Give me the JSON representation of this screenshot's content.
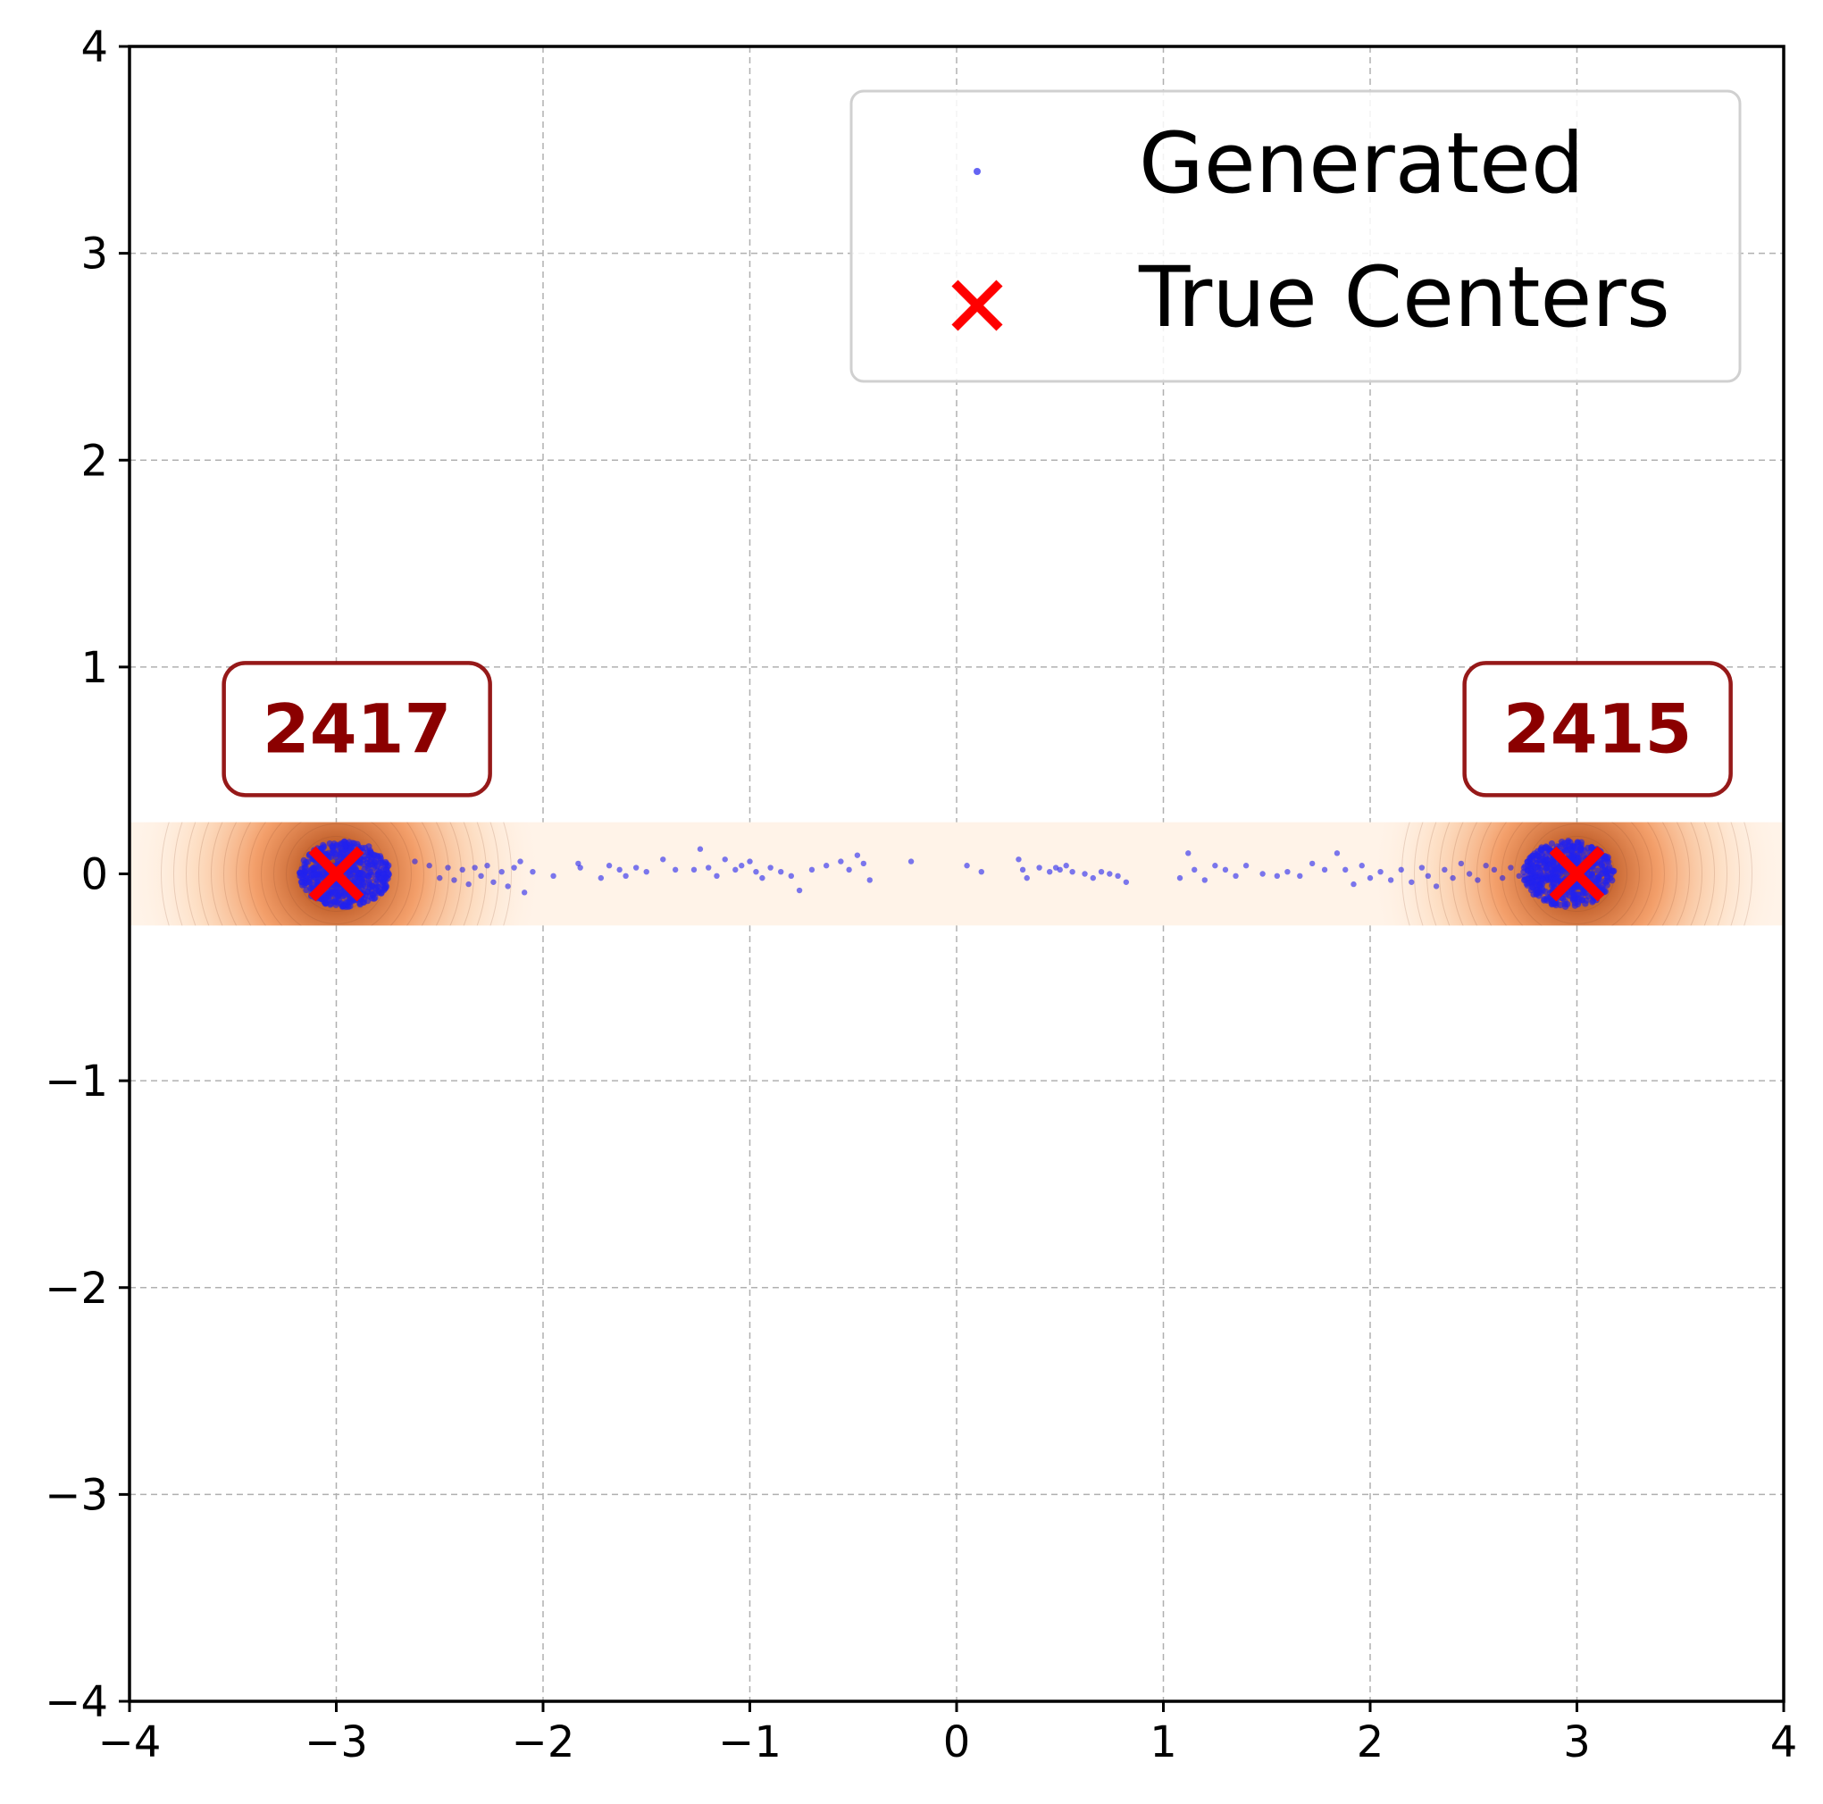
{
  "chart_data": {
    "type": "scatter",
    "title": "",
    "xlabel": "",
    "ylabel": "",
    "xlim": [
      -4,
      4
    ],
    "ylim": [
      -4,
      4
    ],
    "grid": true,
    "legend_position": "top-right",
    "x_ticks": [
      -4,
      -3,
      -2,
      -1,
      0,
      1,
      2,
      3,
      4
    ],
    "y_ticks": [
      -4,
      -3,
      -2,
      -1,
      0,
      1,
      2,
      3,
      4
    ],
    "x_tick_labels": [
      "−4",
      "−3",
      "−2",
      "−1",
      "0",
      "1",
      "2",
      "3",
      "4"
    ],
    "y_tick_labels": [
      "−4",
      "−3",
      "−2",
      "−1",
      "0",
      "1",
      "2",
      "3",
      "4"
    ],
    "density_band": {
      "x": [
        -4,
        4
      ],
      "y": [
        -0.25,
        0.25
      ],
      "peaks_x": [
        -3,
        3
      ],
      "color": "#f08a4b"
    },
    "series": [
      {
        "name": "Generated",
        "color": "#2222ee",
        "cluster_centers": [
          [
            -3,
            0
          ],
          [
            3,
            0
          ]
        ],
        "points": [
          [
            -2.62,
            0.06
          ],
          [
            -2.55,
            0.04
          ],
          [
            -2.5,
            -0.02
          ],
          [
            -2.46,
            0.03
          ],
          [
            -2.43,
            -0.03
          ],
          [
            -2.39,
            0.02
          ],
          [
            -2.36,
            -0.05
          ],
          [
            -2.33,
            0.03
          ],
          [
            -2.3,
            -0.01
          ],
          [
            -2.27,
            0.04
          ],
          [
            -2.24,
            -0.04
          ],
          [
            -2.2,
            0.01
          ],
          [
            -2.17,
            -0.06
          ],
          [
            -2.14,
            0.03
          ],
          [
            -2.11,
            0.06
          ],
          [
            -2.09,
            -0.09
          ],
          [
            -2.05,
            0.01
          ],
          [
            -1.95,
            -0.01
          ],
          [
            -1.83,
            0.05
          ],
          [
            -1.82,
            0.03
          ],
          [
            -1.72,
            -0.02
          ],
          [
            -1.68,
            0.04
          ],
          [
            -1.63,
            0.02
          ],
          [
            -1.6,
            -0.01
          ],
          [
            -1.55,
            0.03
          ],
          [
            -1.5,
            0.01
          ],
          [
            -1.42,
            0.07
          ],
          [
            -1.36,
            0.02
          ],
          [
            -1.27,
            0.02
          ],
          [
            -1.24,
            0.12
          ],
          [
            -1.2,
            0.03
          ],
          [
            -1.16,
            -0.01
          ],
          [
            -1.12,
            0.07
          ],
          [
            -1.07,
            0.02
          ],
          [
            -1.04,
            0.04
          ],
          [
            -1.0,
            0.06
          ],
          [
            -0.97,
            0.01
          ],
          [
            -0.94,
            -0.02
          ],
          [
            -0.9,
            0.03
          ],
          [
            -0.85,
            0.01
          ],
          [
            -0.8,
            -0.01
          ],
          [
            -0.76,
            -0.08
          ],
          [
            -0.7,
            0.02
          ],
          [
            -0.63,
            0.04
          ],
          [
            -0.56,
            0.06
          ],
          [
            -0.52,
            0.02
          ],
          [
            -0.48,
            0.09
          ],
          [
            -0.45,
            0.05
          ],
          [
            -0.42,
            -0.03
          ],
          [
            -0.22,
            0.06
          ],
          [
            0.05,
            0.04
          ],
          [
            0.12,
            0.01
          ],
          [
            0.3,
            0.07
          ],
          [
            0.32,
            0.02
          ],
          [
            0.34,
            -0.02
          ],
          [
            0.4,
            0.03
          ],
          [
            0.45,
            0.01
          ],
          [
            0.48,
            0.03
          ],
          [
            0.5,
            0.02
          ],
          [
            0.53,
            0.04
          ],
          [
            0.56,
            0.01
          ],
          [
            0.62,
            0.0
          ],
          [
            0.66,
            -0.02
          ],
          [
            0.7,
            0.01
          ],
          [
            0.74,
            0.0
          ],
          [
            0.78,
            -0.01
          ],
          [
            0.82,
            -0.04
          ],
          [
            1.08,
            -0.02
          ],
          [
            1.12,
            0.1
          ],
          [
            1.15,
            0.02
          ],
          [
            1.2,
            -0.03
          ],
          [
            1.25,
            0.04
          ],
          [
            1.3,
            0.02
          ],
          [
            1.35,
            -0.01
          ],
          [
            1.4,
            0.04
          ],
          [
            1.48,
            0.0
          ],
          [
            1.55,
            -0.01
          ],
          [
            1.6,
            0.01
          ],
          [
            1.66,
            -0.01
          ],
          [
            1.72,
            0.05
          ],
          [
            1.78,
            0.02
          ],
          [
            1.84,
            0.1
          ],
          [
            1.88,
            0.02
          ],
          [
            1.92,
            -0.05
          ],
          [
            1.96,
            0.04
          ],
          [
            2.0,
            -0.02
          ],
          [
            2.05,
            0.01
          ],
          [
            2.1,
            -0.03
          ],
          [
            2.15,
            0.02
          ],
          [
            2.2,
            -0.04
          ],
          [
            2.25,
            0.03
          ],
          [
            2.28,
            -0.01
          ],
          [
            2.32,
            -0.06
          ],
          [
            2.36,
            0.02
          ],
          [
            2.4,
            -0.02
          ],
          [
            2.44,
            0.05
          ],
          [
            2.48,
            0.0
          ],
          [
            2.52,
            -0.03
          ],
          [
            2.56,
            0.04
          ],
          [
            2.6,
            0.02
          ],
          [
            2.64,
            -0.02
          ],
          [
            2.68,
            0.03
          ],
          [
            2.72,
            -0.01
          ],
          [
            2.76,
            0.02
          ]
        ]
      },
      {
        "name": "True Centers",
        "color": "#ff0000",
        "points": [
          [
            -3,
            0
          ],
          [
            3,
            0
          ]
        ]
      }
    ],
    "annotations": [
      {
        "text": "2417",
        "x": -2.9,
        "y": 0.7,
        "color": "#8b0000"
      },
      {
        "text": "2415",
        "x": 3.1,
        "y": 0.7,
        "color": "#8b0000"
      }
    ]
  }
}
